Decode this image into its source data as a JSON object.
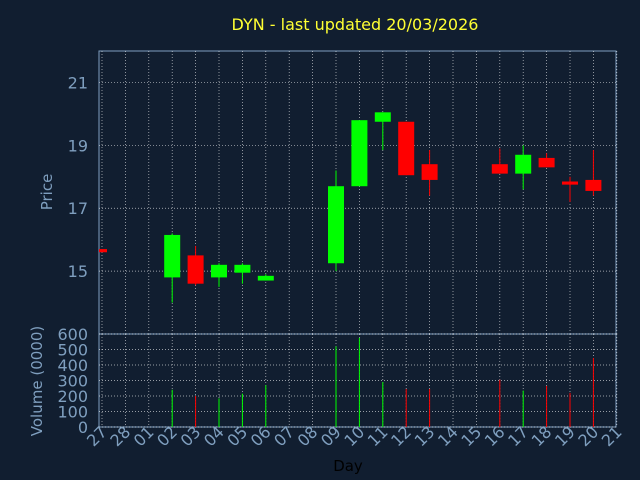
{
  "chart_data": {
    "type": "candlestick",
    "title": "DYN - last updated 20/03/2026",
    "xlabel": "Day",
    "price_ylabel": "Price",
    "volume_ylabel": "Volume (0000)",
    "x_ticks": [
      "27",
      "28",
      "01",
      "02",
      "03",
      "04",
      "05",
      "06",
      "07",
      "08",
      "09",
      "10",
      "11",
      "12",
      "13",
      "14",
      "15",
      "16",
      "17",
      "18",
      "19",
      "20",
      "21"
    ],
    "price_yticks": [
      "15",
      "17",
      "19",
      "21"
    ],
    "volume_yticks": [
      "0",
      "100",
      "200",
      "300",
      "400",
      "500",
      "600"
    ],
    "price_ylim": [
      13.0,
      22.0
    ],
    "volume_ylim": [
      0,
      600
    ],
    "colors": {
      "up": "#00ff00",
      "down": "#ff0000",
      "title": "#ffff33",
      "axis": "#7f9fbf",
      "background": "#111e30",
      "grid": "#ffffff"
    },
    "candles": [
      {
        "x": "27",
        "open": 15.7,
        "high": 15.7,
        "low": 15.6,
        "close": 15.6,
        "volume": 0
      },
      {
        "x": "02",
        "open": 14.8,
        "high": 16.2,
        "low": 14.0,
        "close": 16.15,
        "volume": 240
      },
      {
        "x": "03",
        "open": 15.5,
        "high": 15.8,
        "low": 14.55,
        "close": 14.6,
        "volume": 200
      },
      {
        "x": "04",
        "open": 14.8,
        "high": 15.25,
        "low": 14.5,
        "close": 15.2,
        "volume": 185
      },
      {
        "x": "05",
        "open": 14.95,
        "high": 15.25,
        "low": 14.6,
        "close": 15.2,
        "volume": 215
      },
      {
        "x": "06",
        "open": 14.7,
        "high": 14.9,
        "low": 14.7,
        "close": 14.85,
        "volume": 270
      },
      {
        "x": "09",
        "open": 15.25,
        "high": 18.2,
        "low": 15.0,
        "close": 17.7,
        "volume": 520
      },
      {
        "x": "10",
        "open": 17.7,
        "high": 19.8,
        "low": 17.7,
        "close": 19.8,
        "volume": 575
      },
      {
        "x": "11",
        "open": 19.75,
        "high": 20.05,
        "low": 18.85,
        "close": 20.05,
        "volume": 290
      },
      {
        "x": "12",
        "open": 19.75,
        "high": 19.75,
        "low": 18.05,
        "close": 18.05,
        "volume": 245
      },
      {
        "x": "13",
        "open": 18.4,
        "high": 18.85,
        "low": 17.4,
        "close": 17.9,
        "volume": 245
      },
      {
        "x": "16",
        "open": 18.4,
        "high": 18.9,
        "low": 18.1,
        "close": 18.1,
        "volume": 305
      },
      {
        "x": "17",
        "open": 18.1,
        "high": 19.0,
        "low": 17.6,
        "close": 18.7,
        "volume": 235
      },
      {
        "x": "18",
        "open": 18.6,
        "high": 18.75,
        "low": 18.3,
        "close": 18.3,
        "volume": 265
      },
      {
        "x": "19",
        "open": 17.85,
        "high": 18.0,
        "low": 17.2,
        "close": 17.75,
        "volume": 220
      },
      {
        "x": "20",
        "open": 17.9,
        "high": 18.85,
        "low": 17.4,
        "close": 17.55,
        "volume": 445
      }
    ]
  }
}
